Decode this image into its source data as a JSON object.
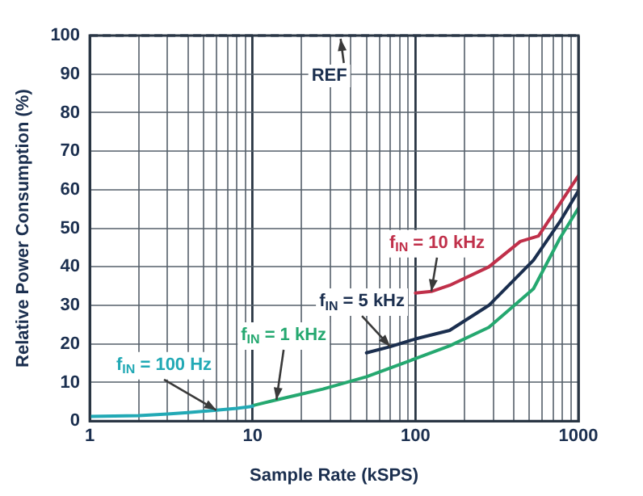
{
  "chart_data": {
    "type": "line",
    "xlabel": "Sample Rate (kSPS)",
    "ylabel": "Relative Power Consumption (%)",
    "log": "x",
    "xlim": [
      1,
      1000
    ],
    "xticks": [
      1,
      10,
      100,
      1000
    ],
    "ylim": [
      0,
      100
    ],
    "yticks": [
      0,
      10,
      20,
      30,
      40,
      50,
      60,
      70,
      80,
      90,
      100
    ],
    "grid": true,
    "legend": false,
    "marker": "none",
    "line_style": "solid",
    "ref_lines": [
      {
        "axis": "y",
        "value": 100,
        "label": "REF",
        "line_style": "dashed",
        "color": "#1b2f4f"
      }
    ],
    "series": [
      {
        "name": "f$_{IN}$ = 100 Hz",
        "color": "#22a9b5",
        "x": [
          1,
          2,
          3,
          4,
          6,
          8,
          10
        ],
        "values": [
          1.2,
          1.4,
          1.8,
          2.2,
          2.8,
          3.3,
          3.8
        ]
      },
      {
        "name": "f$_{IN}$ = 1 kHz",
        "color": "#25a870",
        "x": [
          10,
          14,
          20,
          27,
          50,
          100,
          162,
          282,
          530,
          770,
          1000
        ],
        "values": [
          4,
          5.5,
          7,
          8.3,
          11.5,
          16.2,
          19.5,
          24.3,
          34.3,
          47.4,
          55.2
        ]
      },
      {
        "name": "f$_{IN}$ = 5 kHz",
        "color": "#1b2f4f",
        "x": [
          50,
          70,
          100,
          162,
          282,
          530,
          770,
          1000
        ],
        "values": [
          17.7,
          19.3,
          21.3,
          23.5,
          30,
          41.7,
          51.7,
          59.7
        ]
      },
      {
        "name": "f$_{IN}$ = 10 kHz",
        "color": "#c0304a",
        "x": [
          100,
          125,
          162,
          282,
          440,
          569,
          1000
        ],
        "values": [
          33.2,
          33.6,
          35.2,
          40,
          46.6,
          48,
          63.6
        ]
      }
    ]
  }
}
